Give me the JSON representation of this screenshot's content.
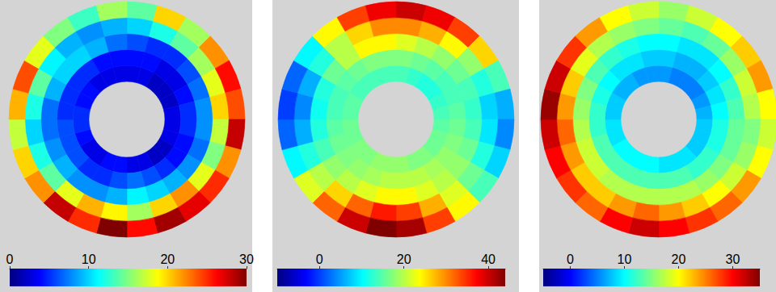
{
  "chart_data": [
    {
      "type": "heatmap",
      "values": [
        [
          3,
          3,
          2,
          2,
          2,
          3,
          3,
          3,
          2,
          2,
          3,
          3,
          4,
          4,
          3,
          3,
          4,
          5,
          5,
          4,
          4,
          3,
          3,
          3
        ],
        [
          4,
          4,
          3,
          3,
          4,
          5,
          5,
          4,
          4,
          5,
          6,
          7,
          6,
          5,
          5,
          6,
          6,
          6,
          5,
          5,
          5,
          5,
          4,
          4
        ],
        [
          6,
          5,
          5,
          6,
          7,
          8,
          8,
          7,
          8,
          9,
          10,
          11,
          9,
          8,
          8,
          9,
          8,
          7,
          7,
          9,
          10,
          10,
          9,
          7
        ],
        [
          10,
          12,
          14,
          16,
          18,
          20,
          17,
          15,
          18,
          22,
          20,
          16,
          19,
          21,
          18,
          14,
          12,
          10,
          12,
          14,
          11,
          9,
          8,
          9
        ],
        [
          14,
          20,
          16,
          22,
          26,
          24,
          28,
          22,
          25,
          27,
          29,
          26,
          30,
          25,
          28,
          22,
          20,
          17,
          21,
          24,
          18,
          15,
          13,
          16
        ]
      ],
      "colorbar": {
        "lim": [
          0,
          30
        ],
        "ticks": [
          0,
          10,
          20,
          30
        ]
      }
    },
    {
      "type": "heatmap",
      "values": [
        [
          14,
          13,
          12,
          12,
          13,
          14,
          15,
          16,
          16,
          17,
          17,
          18,
          18,
          18,
          17,
          17,
          16,
          16,
          15,
          15,
          14,
          14,
          14,
          14
        ],
        [
          17,
          16,
          15,
          14,
          14,
          15,
          16,
          17,
          18,
          19,
          20,
          20,
          20,
          19,
          18,
          17,
          16,
          15,
          14,
          14,
          15,
          16,
          17,
          17
        ],
        [
          22,
          20,
          18,
          16,
          14,
          13,
          14,
          16,
          18,
          20,
          22,
          24,
          24,
          22,
          20,
          18,
          14,
          12,
          11,
          12,
          16,
          20,
          24,
          24
        ],
        [
          30,
          28,
          24,
          18,
          12,
          8,
          9,
          12,
          16,
          22,
          28,
          34,
          36,
          32,
          26,
          20,
          12,
          6,
          4,
          6,
          12,
          20,
          26,
          30
        ],
        [
          40,
          38,
          34,
          26,
          14,
          6,
          4,
          8,
          14,
          24,
          34,
          42,
          44,
          40,
          32,
          22,
          10,
          2,
          0,
          2,
          10,
          24,
          34,
          38
        ]
      ],
      "colorbar": {
        "lim": [
          -10,
          44
        ],
        "ticks": [
          0,
          20,
          40
        ]
      }
    },
    {
      "type": "heatmap",
      "values": [
        [
          6,
          5,
          5,
          5,
          6,
          7,
          8,
          8,
          8,
          9,
          9,
          9,
          10,
          10,
          10,
          10,
          9,
          9,
          8,
          8,
          7,
          7,
          6,
          6
        ],
        [
          8,
          7,
          7,
          8,
          9,
          10,
          11,
          11,
          12,
          12,
          13,
          13,
          13,
          13,
          13,
          13,
          13,
          12,
          12,
          11,
          10,
          9,
          9,
          8
        ],
        [
          10,
          9,
          9,
          10,
          12,
          13,
          14,
          14,
          15,
          16,
          17,
          17,
          17,
          17,
          17,
          18,
          18,
          17,
          16,
          15,
          13,
          12,
          11,
          10
        ],
        [
          14,
          13,
          14,
          16,
          18,
          17,
          15,
          16,
          18,
          20,
          22,
          24,
          26,
          24,
          22,
          22,
          24,
          26,
          24,
          22,
          19,
          17,
          16,
          15
        ],
        [
          16,
          18,
          20,
          22,
          24,
          20,
          18,
          20,
          24,
          26,
          28,
          30,
          32,
          30,
          26,
          28,
          30,
          32,
          34,
          32,
          28,
          24,
          20,
          18
        ]
      ],
      "colorbar": {
        "lim": [
          -5,
          35
        ],
        "ticks": [
          0,
          10,
          20,
          30
        ]
      }
    }
  ]
}
